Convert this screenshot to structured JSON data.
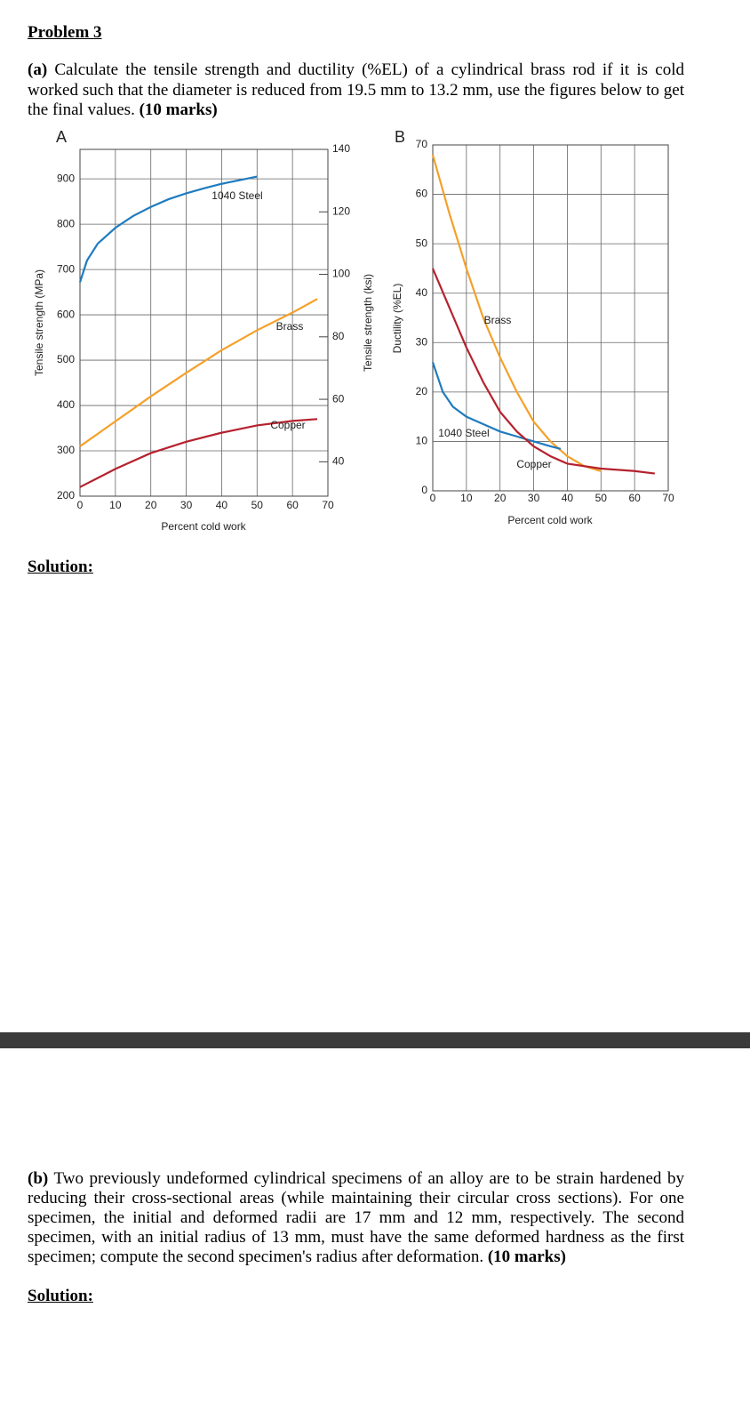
{
  "header": {
    "title": "Problem 3"
  },
  "part_a": {
    "label": "(a)",
    "text": "Calculate the tensile strength and ductility (%EL) of a cylindrical brass rod if it is cold worked such that the diameter is reduced from 19.5 mm to 13.2 mm, use the figures below to get the final values.",
    "marks": "(10 marks)",
    "solution": "Solution:"
  },
  "chart_data": [
    {
      "type": "line",
      "panel_label": "A",
      "xlabel": "Percent cold work",
      "ylabel": "Tensile strength (MPa)",
      "y2label": "Tensile strength (ksi)",
      "xlim": [
        0,
        70
      ],
      "xticks": [
        0,
        10,
        20,
        30,
        40,
        50,
        60,
        70
      ],
      "ylim": [
        200,
        965
      ],
      "yticks": [
        200,
        300,
        400,
        500,
        600,
        700,
        800,
        900
      ],
      "y2lim": [
        29,
        140
      ],
      "y2ticks": [
        40,
        60,
        80,
        100,
        120,
        140
      ],
      "grid": true,
      "series": [
        {
          "name": "1040 Steel",
          "color": "#1f7bbf",
          "x": [
            0,
            2,
            5,
            10,
            15,
            20,
            25,
            30,
            35,
            40,
            45,
            50
          ],
          "values": [
            672,
            720,
            757,
            792,
            818,
            838,
            855,
            868,
            879,
            889,
            897,
            905
          ]
        },
        {
          "name": "Brass",
          "color": "#f5a02a",
          "x": [
            0,
            10,
            20,
            30,
            40,
            50,
            60,
            67
          ],
          "values": [
            310,
            365,
            420,
            472,
            522,
            566,
            605,
            635
          ]
        },
        {
          "name": "Copper",
          "color": "#b5222e",
          "x": [
            0,
            5,
            10,
            20,
            30,
            40,
            50,
            60,
            67
          ],
          "values": [
            220,
            240,
            260,
            295,
            320,
            340,
            356,
            366,
            370
          ]
        }
      ]
    },
    {
      "type": "line",
      "panel_label": "B",
      "xlabel": "Percent cold work",
      "ylabel": "Ductility (%EL)",
      "xlim": [
        0,
        70
      ],
      "xticks": [
        0,
        10,
        20,
        30,
        40,
        50,
        60,
        70
      ],
      "ylim": [
        0,
        70
      ],
      "yticks": [
        0,
        10,
        20,
        30,
        40,
        50,
        60,
        70
      ],
      "grid": true,
      "series": [
        {
          "name": "Brass",
          "color": "#f5a02a",
          "x": [
            0,
            5,
            10,
            15,
            20,
            25,
            30,
            35,
            40,
            45,
            50
          ],
          "values": [
            68,
            56,
            45,
            35,
            27,
            20,
            14,
            10,
            7,
            5,
            4
          ]
        },
        {
          "name": "1040 Steel",
          "color": "#1f7bbf",
          "x": [
            0,
            1.5,
            3,
            6,
            10,
            15,
            20,
            25,
            30,
            35,
            38
          ],
          "values": [
            26,
            23,
            20,
            17,
            15,
            13.5,
            12,
            11,
            10,
            9,
            8.5
          ]
        },
        {
          "name": "Copper",
          "color": "#b5222e",
          "x": [
            0,
            5,
            10,
            15,
            20,
            25,
            30,
            35,
            40,
            50,
            60,
            66
          ],
          "values": [
            45,
            37,
            29,
            22,
            16,
            12,
            9,
            7,
            5.5,
            4.5,
            4,
            3.5
          ]
        }
      ]
    }
  ],
  "part_b": {
    "label": "(b)",
    "text": "Two previously undeformed cylindrical specimens of an alloy are to be strain hardened by reducing their cross-sectional areas (while maintaining their circular cross sections). For one specimen, the initial and deformed radii are 17 mm and 12 mm, respectively. The second specimen, with an initial radius of 13 mm, must have the same deformed hardness as the first specimen; compute the second specimen's radius after deformation.",
    "marks": "(10 marks)",
    "solution": "Solution:"
  }
}
